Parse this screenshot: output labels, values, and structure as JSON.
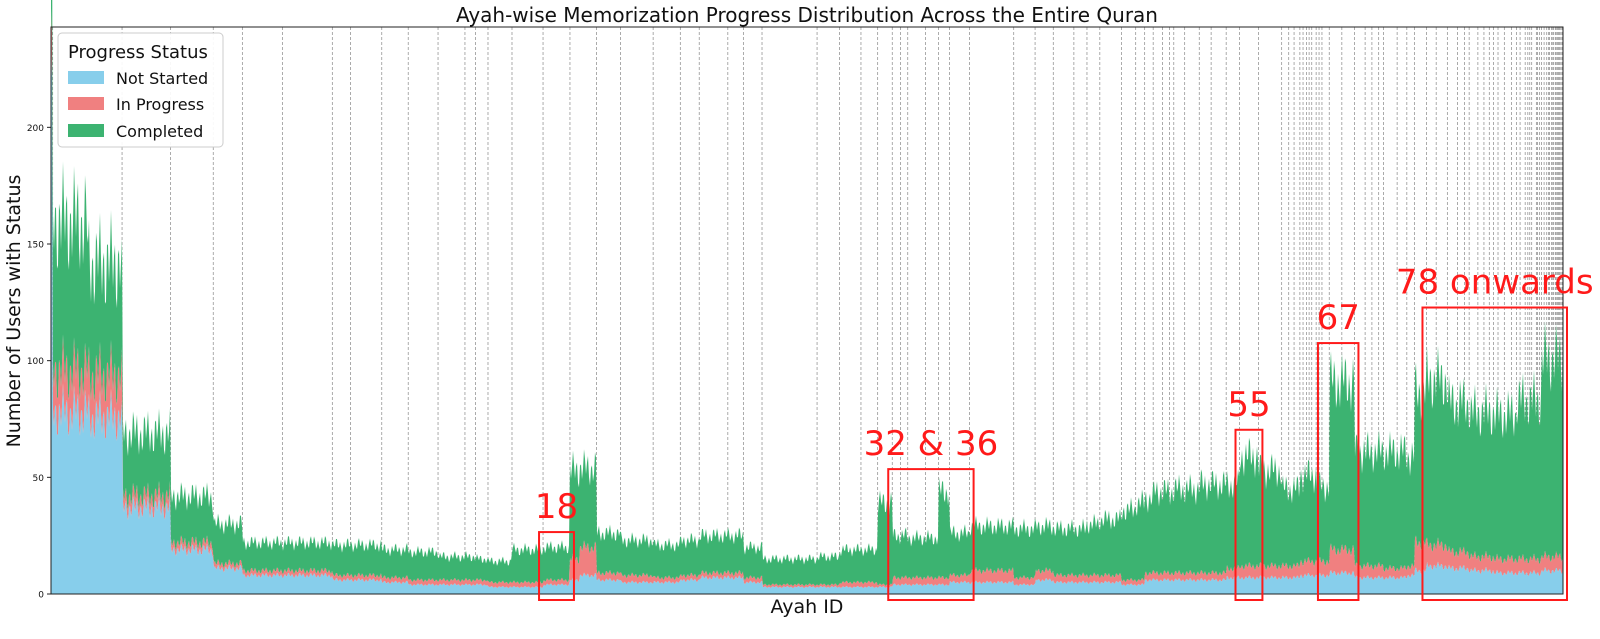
{
  "chart_data": {
    "type": "area",
    "stacked": true,
    "title": "Ayah-wise Memorization Progress Distribution Across the Entire Quran",
    "xlabel": "Ayah ID",
    "ylabel": "Number of Users with Status",
    "ylim": [
      0,
      243
    ],
    "yticks": [
      0,
      50,
      100,
      150,
      200
    ],
    "xlim": [
      1,
      6236
    ],
    "grid": "vertical dashed lines at surah boundaries",
    "legend": {
      "title": "Progress Status",
      "placement": "upper-left",
      "entries": [
        "Not Started",
        "In Progress",
        "Completed"
      ]
    },
    "colors": {
      "Not Started": "#87ceeb",
      "In Progress": "#f08080",
      "Completed": "#3cb371",
      "annotation": "#ff1a1a"
    },
    "surah_start_ayah": [
      1,
      8,
      294,
      494,
      670,
      790,
      955,
      1161,
      1236,
      1365,
      1474,
      1597,
      1708,
      1751,
      1803,
      1902,
      2030,
      2141,
      2251,
      2349,
      2484,
      2596,
      2674,
      2792,
      2856,
      2933,
      3160,
      3253,
      3341,
      3410,
      3470,
      3504,
      3534,
      3607,
      3661,
      3706,
      3789,
      3971,
      4059,
      4134,
      4219,
      4273,
      4326,
      4415,
      4474,
      4511,
      4546,
      4584,
      4613,
      4631,
      4676,
      4736,
      4785,
      4847,
      4902,
      4980,
      5076,
      5105,
      5127,
      5151,
      5164,
      5178,
      5189,
      5200,
      5218,
      5230,
      5242,
      5272,
      5324,
      5376,
      5420,
      5448,
      5476,
      5496,
      5552,
      5592,
      5623,
      5673,
      5713,
      5759,
      5801,
      5830,
      5849,
      5885,
      5910,
      5932,
      5949,
      5968,
      5994,
      6024,
      6044,
      6059,
      6080,
      6091,
      6099,
      6107,
      6126,
      6131,
      6139,
      6147,
      6158,
      6169,
      6177,
      6180,
      6189,
      6194,
      6198,
      6205,
      6208,
      6214,
      6217,
      6222,
      6227,
      6232
    ],
    "series": [
      {
        "name": "Not Started",
        "points": [
          [
            1,
            200
          ],
          [
            8,
            78
          ],
          [
            150,
            76
          ],
          [
            293,
            72
          ],
          [
            294,
            37
          ],
          [
            493,
            34
          ],
          [
            494,
            19
          ],
          [
            669,
            18
          ],
          [
            670,
            11
          ],
          [
            789,
            10
          ],
          [
            790,
            8
          ],
          [
            1160,
            7
          ],
          [
            1161,
            6
          ],
          [
            1365,
            5
          ],
          [
            1474,
            4
          ],
          [
            1597,
            4
          ],
          [
            1708,
            4
          ],
          [
            1751,
            4
          ],
          [
            1803,
            3
          ],
          [
            1902,
            3
          ],
          [
            2030,
            4
          ],
          [
            2141,
            6
          ],
          [
            2180,
            8
          ],
          [
            2251,
            6
          ],
          [
            2349,
            5
          ],
          [
            2484,
            5
          ],
          [
            2596,
            6
          ],
          [
            2674,
            7
          ],
          [
            2856,
            5
          ],
          [
            2933,
            3
          ],
          [
            3160,
            3
          ],
          [
            3253,
            3
          ],
          [
            3341,
            3
          ],
          [
            3410,
            3
          ],
          [
            3470,
            4
          ],
          [
            3534,
            4
          ],
          [
            3607,
            4
          ],
          [
            3661,
            4
          ],
          [
            3706,
            5
          ],
          [
            3789,
            5
          ],
          [
            3971,
            4
          ],
          [
            4059,
            6
          ],
          [
            4134,
            5
          ],
          [
            4219,
            5
          ],
          [
            4273,
            5
          ],
          [
            4326,
            5
          ],
          [
            4415,
            4
          ],
          [
            4474,
            4
          ],
          [
            4511,
            6
          ],
          [
            4546,
            6
          ],
          [
            4631,
            6
          ],
          [
            4736,
            6
          ],
          [
            4847,
            7
          ],
          [
            4902,
            7
          ],
          [
            4980,
            7
          ],
          [
            5076,
            7
          ],
          [
            5151,
            8
          ],
          [
            5218,
            8
          ],
          [
            5272,
            9
          ],
          [
            5376,
            7
          ],
          [
            5496,
            7
          ],
          [
            5592,
            8
          ],
          [
            5623,
            10
          ],
          [
            5673,
            12
          ],
          [
            5759,
            11
          ],
          [
            5849,
            10
          ],
          [
            5949,
            9
          ],
          [
            6044,
            9
          ],
          [
            6147,
            10
          ],
          [
            6236,
            11
          ]
        ]
      },
      {
        "name": "In Progress",
        "points": [
          [
            1,
            17
          ],
          [
            8,
            18
          ],
          [
            150,
            18
          ],
          [
            293,
            20
          ],
          [
            294,
            5
          ],
          [
            493,
            5
          ],
          [
            494,
            3
          ],
          [
            669,
            3
          ],
          [
            670,
            2
          ],
          [
            789,
            2
          ],
          [
            790,
            2
          ],
          [
            1160,
            2
          ],
          [
            1161,
            2
          ],
          [
            1365,
            2
          ],
          [
            1474,
            2
          ],
          [
            1597,
            2
          ],
          [
            1708,
            2
          ],
          [
            1751,
            2
          ],
          [
            1803,
            2
          ],
          [
            1902,
            2
          ],
          [
            2030,
            2
          ],
          [
            2141,
            9
          ],
          [
            2180,
            12
          ],
          [
            2251,
            3
          ],
          [
            2349,
            3
          ],
          [
            2484,
            2
          ],
          [
            2596,
            2
          ],
          [
            2674,
            2
          ],
          [
            2856,
            2
          ],
          [
            2933,
            1
          ],
          [
            3160,
            1
          ],
          [
            3253,
            2
          ],
          [
            3341,
            2
          ],
          [
            3410,
            1
          ],
          [
            3470,
            3
          ],
          [
            3534,
            3
          ],
          [
            3607,
            3
          ],
          [
            3661,
            3
          ],
          [
            3706,
            3
          ],
          [
            3789,
            5
          ],
          [
            3971,
            3
          ],
          [
            4059,
            4
          ],
          [
            4134,
            3
          ],
          [
            4219,
            3
          ],
          [
            4273,
            3
          ],
          [
            4326,
            3
          ],
          [
            4415,
            2
          ],
          [
            4474,
            2
          ],
          [
            4511,
            3
          ],
          [
            4546,
            3
          ],
          [
            4631,
            3
          ],
          [
            4736,
            3
          ],
          [
            4847,
            4
          ],
          [
            4902,
            5
          ],
          [
            4980,
            5
          ],
          [
            5076,
            5
          ],
          [
            5151,
            6
          ],
          [
            5218,
            6
          ],
          [
            5272,
            10
          ],
          [
            5376,
            5
          ],
          [
            5496,
            4
          ],
          [
            5592,
            4
          ],
          [
            5623,
            12
          ],
          [
            5673,
            9
          ],
          [
            5759,
            7
          ],
          [
            5849,
            6
          ],
          [
            5949,
            6
          ],
          [
            6044,
            6
          ],
          [
            6147,
            6
          ],
          [
            6236,
            7
          ]
        ]
      },
      {
        "name": "Completed",
        "points": [
          [
            1,
            33
          ],
          [
            8,
            64
          ],
          [
            150,
            48
          ],
          [
            293,
            40
          ],
          [
            294,
            27
          ],
          [
            493,
            24
          ],
          [
            494,
            20
          ],
          [
            669,
            18
          ],
          [
            670,
            17
          ],
          [
            789,
            16
          ],
          [
            790,
            12
          ],
          [
            1160,
            12
          ],
          [
            1161,
            13
          ],
          [
            1365,
            12
          ],
          [
            1474,
            12
          ],
          [
            1597,
            10
          ],
          [
            1708,
            10
          ],
          [
            1751,
            9
          ],
          [
            1803,
            9
          ],
          [
            1902,
            14
          ],
          [
            2030,
            14
          ],
          [
            2141,
            38
          ],
          [
            2180,
            34
          ],
          [
            2251,
            17
          ],
          [
            2349,
            15
          ],
          [
            2484,
            14
          ],
          [
            2596,
            15
          ],
          [
            2674,
            16
          ],
          [
            2856,
            13
          ],
          [
            2933,
            11
          ],
          [
            3160,
            12
          ],
          [
            3253,
            14
          ],
          [
            3341,
            14
          ],
          [
            3410,
            35
          ],
          [
            3470,
            18
          ],
          [
            3534,
            17
          ],
          [
            3607,
            17
          ],
          [
            3661,
            37
          ],
          [
            3706,
            18
          ],
          [
            3789,
            19
          ],
          [
            3971,
            21
          ],
          [
            4059,
            19
          ],
          [
            4134,
            20
          ],
          [
            4219,
            20
          ],
          [
            4273,
            22
          ],
          [
            4326,
            24
          ],
          [
            4415,
            30
          ],
          [
            4474,
            33
          ],
          [
            4511,
            32
          ],
          [
            4546,
            35
          ],
          [
            4631,
            36
          ],
          [
            4736,
            38
          ],
          [
            4847,
            36
          ],
          [
            4902,
            47
          ],
          [
            4980,
            41
          ],
          [
            5076,
            33
          ],
          [
            5151,
            37
          ],
          [
            5218,
            32
          ],
          [
            5272,
            72
          ],
          [
            5376,
            49
          ],
          [
            5496,
            50
          ],
          [
            5592,
            47
          ],
          [
            5623,
            65
          ],
          [
            5673,
            71
          ],
          [
            5759,
            64
          ],
          [
            5849,
            62
          ],
          [
            5949,
            62
          ],
          [
            6044,
            68
          ],
          [
            6147,
            85
          ],
          [
            6236,
            102
          ]
        ]
      }
    ],
    "annotations": [
      {
        "label": "18",
        "x_range": [
          2030,
          2141
        ]
      },
      {
        "label": "32 & 36",
        "x_range": [
          3470,
          3789
        ]
      },
      {
        "label": "55",
        "x_range": [
          4902,
          4980
        ]
      },
      {
        "label": "67",
        "x_range": [
          5242,
          5376
        ]
      },
      {
        "label": "78 onwards",
        "x_range": [
          5673,
          6236
        ]
      }
    ]
  }
}
